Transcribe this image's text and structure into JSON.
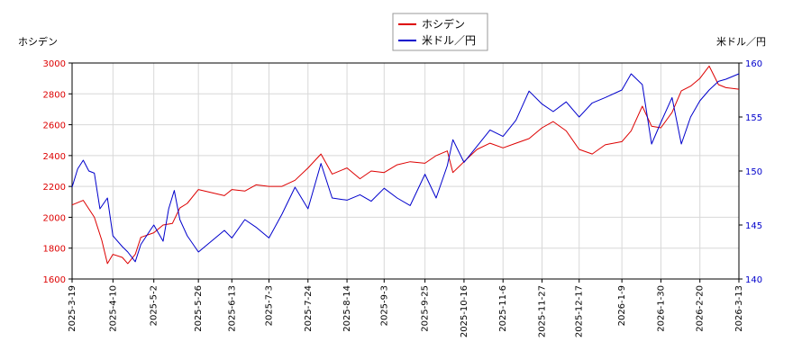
{
  "chart_data": {
    "type": "line",
    "y_left_label": "ホシデン",
    "y_right_label": "米ドル／円",
    "ylim_left": [
      1600,
      3000
    ],
    "ylim_right": [
      140,
      160
    ],
    "y_left_ticks": [
      1600,
      1800,
      2000,
      2200,
      2400,
      2600,
      2800,
      3000
    ],
    "y_right_ticks": [
      140,
      145,
      150,
      155,
      160
    ],
    "x_ticks": [
      "2025-3-19",
      "2025-4-10",
      "2025-5-2",
      "2025-5-26",
      "2025-6-13",
      "2025-7-3",
      "2025-7-24",
      "2025-8-14",
      "2025-9-3",
      "2025-9-25",
      "2025-10-16",
      "2025-11-6",
      "2025-11-27",
      "2025-12-17",
      "2026-1-9",
      "2026-1-30",
      "2026-2-20",
      "2026-3-13"
    ],
    "grid": true,
    "legend_position": "top-center",
    "colors": {
      "series_left": "#dd0000",
      "series_right": "#0000cc",
      "grid": "#d8d8d8",
      "axis": "#000000"
    },
    "series": [
      {
        "name": "ホシデン",
        "axis": "left",
        "points": [
          [
            "2025-3-19",
            2080
          ],
          [
            "2025-3-25",
            2110
          ],
          [
            "2025-3-31",
            2000
          ],
          [
            "2025-4-4",
            1850
          ],
          [
            "2025-4-7",
            1700
          ],
          [
            "2025-4-10",
            1760
          ],
          [
            "2025-4-15",
            1740
          ],
          [
            "2025-4-18",
            1700
          ],
          [
            "2025-4-22",
            1760
          ],
          [
            "2025-4-25",
            1870
          ],
          [
            "2025-5-2",
            1900
          ],
          [
            "2025-5-7",
            1950
          ],
          [
            "2025-5-12",
            1960
          ],
          [
            "2025-5-16",
            2060
          ],
          [
            "2025-5-20",
            2090
          ],
          [
            "2025-5-26",
            2180
          ],
          [
            "2025-6-2",
            2160
          ],
          [
            "2025-6-9",
            2140
          ],
          [
            "2025-6-13",
            2180
          ],
          [
            "2025-6-20",
            2170
          ],
          [
            "2025-6-26",
            2210
          ],
          [
            "2025-7-3",
            2200
          ],
          [
            "2025-7-10",
            2200
          ],
          [
            "2025-7-17",
            2240
          ],
          [
            "2025-7-24",
            2320
          ],
          [
            "2025-7-31",
            2410
          ],
          [
            "2025-8-6",
            2280
          ],
          [
            "2025-8-14",
            2320
          ],
          [
            "2025-8-21",
            2250
          ],
          [
            "2025-8-27",
            2300
          ],
          [
            "2025-9-3",
            2290
          ],
          [
            "2025-9-10",
            2340
          ],
          [
            "2025-9-17",
            2360
          ],
          [
            "2025-9-25",
            2350
          ],
          [
            "2025-10-1",
            2400
          ],
          [
            "2025-10-7",
            2430
          ],
          [
            "2025-10-10",
            2290
          ],
          [
            "2025-10-16",
            2360
          ],
          [
            "2025-10-23",
            2440
          ],
          [
            "2025-10-30",
            2480
          ],
          [
            "2025-11-6",
            2450
          ],
          [
            "2025-11-13",
            2480
          ],
          [
            "2025-11-20",
            2510
          ],
          [
            "2025-11-27",
            2580
          ],
          [
            "2025-12-3",
            2620
          ],
          [
            "2025-12-10",
            2560
          ],
          [
            "2025-12-17",
            2440
          ],
          [
            "2025-12-24",
            2410
          ],
          [
            "2025-12-31",
            2470
          ],
          [
            "2026-1-9",
            2490
          ],
          [
            "2026-1-14",
            2560
          ],
          [
            "2026-1-20",
            2720
          ],
          [
            "2026-1-25",
            2590
          ],
          [
            "2026-1-30",
            2580
          ],
          [
            "2026-2-5",
            2680
          ],
          [
            "2026-2-10",
            2820
          ],
          [
            "2026-2-15",
            2850
          ],
          [
            "2026-2-20",
            2900
          ],
          [
            "2026-2-25",
            2980
          ],
          [
            "2026-3-2",
            2860
          ],
          [
            "2026-3-6",
            2840
          ],
          [
            "2026-3-13",
            2830
          ]
        ]
      },
      {
        "name": "米ドル／円",
        "axis": "right",
        "points": [
          [
            "2025-3-19",
            148.5
          ],
          [
            "2025-3-22",
            150.2
          ],
          [
            "2025-3-25",
            151.0
          ],
          [
            "2025-3-28",
            150.0
          ],
          [
            "2025-3-31",
            149.8
          ],
          [
            "2025-4-3",
            146.5
          ],
          [
            "2025-4-7",
            147.5
          ],
          [
            "2025-4-10",
            144.0
          ],
          [
            "2025-4-15",
            143.0
          ],
          [
            "2025-4-18",
            142.5
          ],
          [
            "2025-4-22",
            141.6
          ],
          [
            "2025-4-25",
            143.2
          ],
          [
            "2025-4-30",
            144.5
          ],
          [
            "2025-5-2",
            145.0
          ],
          [
            "2025-5-7",
            143.5
          ],
          [
            "2025-5-10",
            146.5
          ],
          [
            "2025-5-13",
            148.2
          ],
          [
            "2025-5-16",
            145.5
          ],
          [
            "2025-5-20",
            144.0
          ],
          [
            "2025-5-26",
            142.5
          ],
          [
            "2025-6-2",
            143.5
          ],
          [
            "2025-6-9",
            144.5
          ],
          [
            "2025-6-13",
            143.8
          ],
          [
            "2025-6-20",
            145.5
          ],
          [
            "2025-6-26",
            144.8
          ],
          [
            "2025-7-3",
            143.8
          ],
          [
            "2025-7-10",
            146.0
          ],
          [
            "2025-7-17",
            148.5
          ],
          [
            "2025-7-24",
            146.5
          ],
          [
            "2025-7-31",
            150.7
          ],
          [
            "2025-8-6",
            147.5
          ],
          [
            "2025-8-14",
            147.3
          ],
          [
            "2025-8-21",
            147.8
          ],
          [
            "2025-8-27",
            147.2
          ],
          [
            "2025-9-3",
            148.4
          ],
          [
            "2025-9-10",
            147.5
          ],
          [
            "2025-9-17",
            146.8
          ],
          [
            "2025-9-25",
            149.7
          ],
          [
            "2025-10-1",
            147.5
          ],
          [
            "2025-10-7",
            150.5
          ],
          [
            "2025-10-10",
            152.9
          ],
          [
            "2025-10-16",
            150.8
          ],
          [
            "2025-10-23",
            152.3
          ],
          [
            "2025-10-30",
            153.8
          ],
          [
            "2025-11-6",
            153.2
          ],
          [
            "2025-11-13",
            154.7
          ],
          [
            "2025-11-20",
            157.4
          ],
          [
            "2025-11-27",
            156.2
          ],
          [
            "2025-12-3",
            155.5
          ],
          [
            "2025-12-10",
            156.4
          ],
          [
            "2025-12-17",
            155.0
          ],
          [
            "2025-12-24",
            156.3
          ],
          [
            "2025-12-31",
            156.8
          ],
          [
            "2026-1-9",
            157.5
          ],
          [
            "2026-1-14",
            159.0
          ],
          [
            "2026-1-20",
            158.0
          ],
          [
            "2026-1-25",
            152.5
          ],
          [
            "2026-1-30",
            154.5
          ],
          [
            "2026-2-5",
            156.8
          ],
          [
            "2026-2-10",
            152.5
          ],
          [
            "2026-2-15",
            155.0
          ],
          [
            "2026-2-20",
            156.5
          ],
          [
            "2026-2-25",
            157.5
          ],
          [
            "2026-3-2",
            158.3
          ],
          [
            "2026-3-6",
            158.5
          ],
          [
            "2026-3-13",
            159.0
          ]
        ]
      }
    ]
  }
}
